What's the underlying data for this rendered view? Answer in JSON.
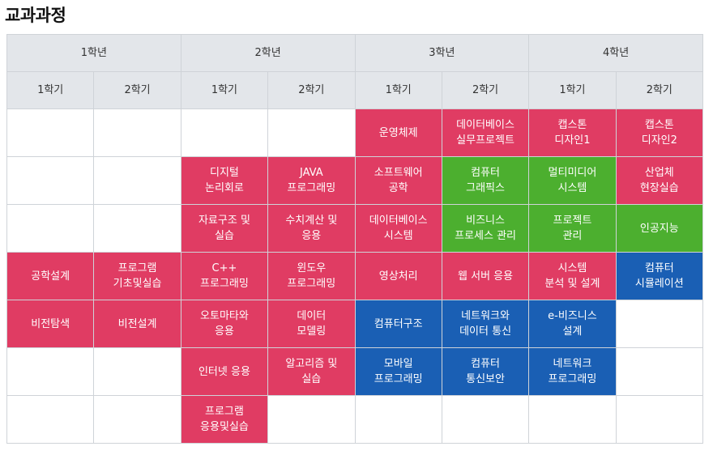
{
  "page": {
    "title": "교과과정"
  },
  "colors": {
    "red": "#e03c63",
    "green": "#4caf2f",
    "blue": "#1a5fb4",
    "header_bg": "#e3e6ea"
  },
  "years": [
    "1학년",
    "2학년",
    "3학년",
    "4학년"
  ],
  "semesters": [
    "1학기",
    "2학기",
    "1학기",
    "2학기",
    "1학기",
    "2학기",
    "1학기",
    "2학기"
  ],
  "rows": [
    [
      {
        "text": "",
        "color": "empty"
      },
      {
        "text": "",
        "color": "empty"
      },
      {
        "text": "",
        "color": "empty"
      },
      {
        "text": "",
        "color": "empty"
      },
      {
        "text": "운영체제",
        "color": "red"
      },
      {
        "text": "데이터베이스\n실무프로젝트",
        "color": "red"
      },
      {
        "text": "캡스톤\n디자인1",
        "color": "red"
      },
      {
        "text": "캡스톤\n디자인2",
        "color": "red"
      }
    ],
    [
      {
        "text": "",
        "color": "empty"
      },
      {
        "text": "",
        "color": "empty"
      },
      {
        "text": "디지털\n논리회로",
        "color": "red"
      },
      {
        "text": "JAVA\n프로그래밍",
        "color": "red"
      },
      {
        "text": "소프트웨어\n공학",
        "color": "red"
      },
      {
        "text": "컴퓨터\n그래픽스",
        "color": "green"
      },
      {
        "text": "멀티미디어\n시스템",
        "color": "green"
      },
      {
        "text": "산업체\n현장실습",
        "color": "red"
      }
    ],
    [
      {
        "text": "",
        "color": "empty"
      },
      {
        "text": "",
        "color": "empty"
      },
      {
        "text": "자료구조 및\n실습",
        "color": "red"
      },
      {
        "text": "수치계산 및\n응용",
        "color": "red"
      },
      {
        "text": "데이터베이스\n시스템",
        "color": "red"
      },
      {
        "text": "비즈니스\n프로세스 관리",
        "color": "green"
      },
      {
        "text": "프로젝트\n관리",
        "color": "green"
      },
      {
        "text": "인공지능",
        "color": "green"
      }
    ],
    [
      {
        "text": "공학설계",
        "color": "red"
      },
      {
        "text": "프로그램\n기초및실습",
        "color": "red"
      },
      {
        "text": "C++\n프로그래밍",
        "color": "red"
      },
      {
        "text": "윈도우\n프로그래밍",
        "color": "red"
      },
      {
        "text": "영상처리",
        "color": "red"
      },
      {
        "text": "웹 서버 응용",
        "color": "red"
      },
      {
        "text": "시스템\n분석 및 설계",
        "color": "red"
      },
      {
        "text": "컴퓨터\n시뮬레이션",
        "color": "blue"
      }
    ],
    [
      {
        "text": "비전탐색",
        "color": "red"
      },
      {
        "text": "비전설계",
        "color": "red"
      },
      {
        "text": "오토마타와\n응용",
        "color": "red"
      },
      {
        "text": "데이터\n모델링",
        "color": "red"
      },
      {
        "text": "컴퓨터구조",
        "color": "blue"
      },
      {
        "text": "네트워크와\n데이터 통신",
        "color": "blue"
      },
      {
        "text": "e-비즈니스\n설계",
        "color": "blue"
      },
      {
        "text": "",
        "color": "empty"
      }
    ],
    [
      {
        "text": "",
        "color": "empty"
      },
      {
        "text": "",
        "color": "empty"
      },
      {
        "text": "인터넷 응용",
        "color": "red"
      },
      {
        "text": "알고리즘 및\n실습",
        "color": "red"
      },
      {
        "text": "모바일\n프로그래밍",
        "color": "blue"
      },
      {
        "text": "컴퓨터\n통신보안",
        "color": "blue"
      },
      {
        "text": "네트워크\n프로그래밍",
        "color": "blue"
      },
      {
        "text": "",
        "color": "empty"
      }
    ],
    [
      {
        "text": "",
        "color": "empty"
      },
      {
        "text": "",
        "color": "empty"
      },
      {
        "text": "프로그램\n응용및실습",
        "color": "red"
      },
      {
        "text": "",
        "color": "empty"
      },
      {
        "text": "",
        "color": "empty"
      },
      {
        "text": "",
        "color": "empty"
      },
      {
        "text": "",
        "color": "empty"
      },
      {
        "text": "",
        "color": "empty"
      }
    ]
  ]
}
